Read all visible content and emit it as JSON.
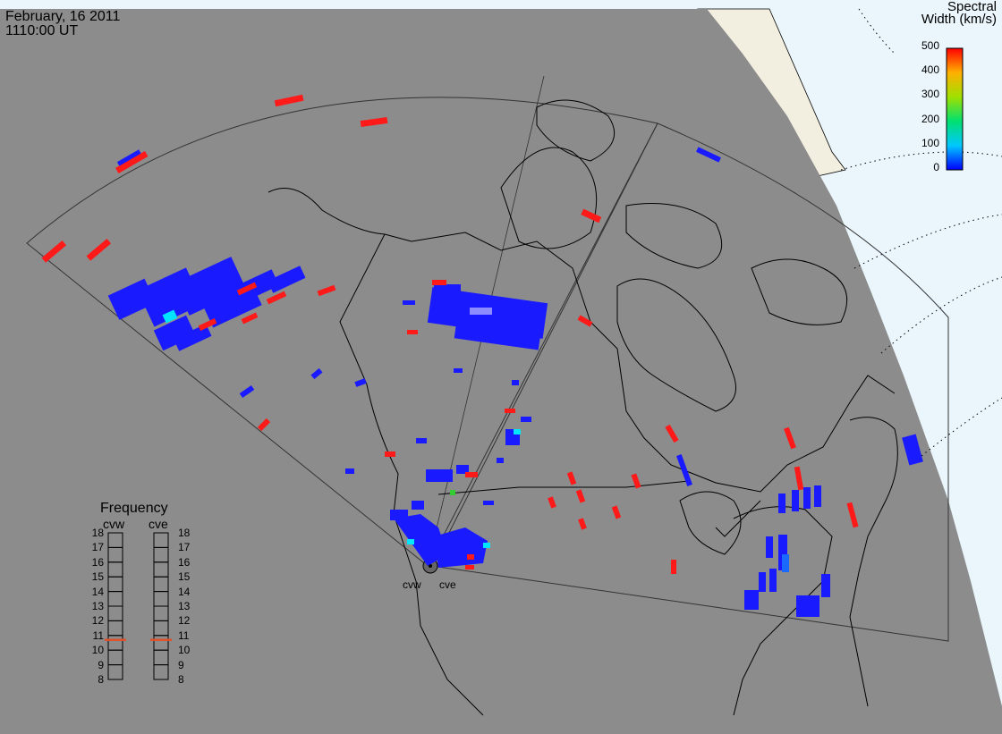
{
  "header": {
    "date": "February, 16 2011",
    "time": "1110:00 UT"
  },
  "colorbar": {
    "title_line1": "Spectral",
    "title_line2": "Width (km/s)",
    "ticks": [
      "500",
      "400",
      "300",
      "200",
      "100",
      "0"
    ],
    "range": [
      0,
      500
    ]
  },
  "frequency_panel": {
    "title": "Frequency",
    "radars": [
      "cvw",
      "cve"
    ],
    "scale": [
      "18",
      "17",
      "16",
      "15",
      "14",
      "13",
      "12",
      "11",
      "10",
      "9",
      "8"
    ],
    "selected_mhz": {
      "cvw": 10.7,
      "cve": 10.7
    },
    "marker_color": "#e0502a"
  },
  "radar_sites": [
    "cvw",
    "cve"
  ],
  "colors": {
    "land": "#8c8c8c",
    "ocean": "#eaf6fc",
    "ice": "#f3efe0",
    "blue": "#1a1aff",
    "red": "#ff1a1a",
    "cyan": "#00e5ff",
    "green": "#33cc33"
  }
}
